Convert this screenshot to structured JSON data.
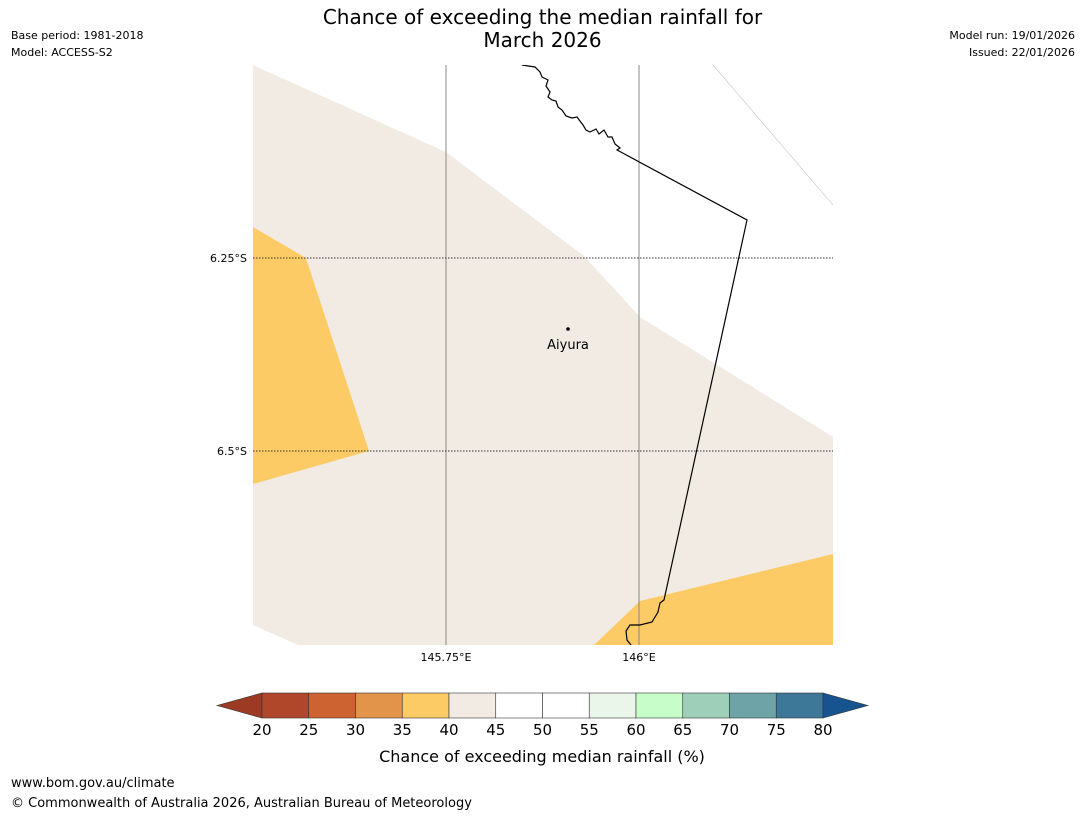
{
  "header": {
    "title_line1": "Chance of exceeding the median rainfall for",
    "title_line2": "March 2026",
    "base_period": "Base period: 1981-2018",
    "model": "Model: ACCESS-S2",
    "model_run": "Model run: 19/01/2026",
    "issued": "Issued: 22/01/2026"
  },
  "map": {
    "lat_labels": [
      "6.25°S",
      "6.5°S"
    ],
    "lon_labels": [
      "145.75°E",
      "146°E"
    ],
    "place": "Aiyura",
    "colors": {
      "band_35_40": "#fdcb66",
      "band_40_45": "#f1ebe4",
      "border": "#000000"
    }
  },
  "colorbar": {
    "ticks": [
      "20",
      "25",
      "30",
      "35",
      "40",
      "45",
      "50",
      "55",
      "60",
      "65",
      "70",
      "75",
      "80"
    ],
    "colors": [
      "#9c3a24",
      "#b0472a",
      "#cd6331",
      "#e2954a",
      "#fdcb66",
      "#f1ebe4",
      "#ffffff",
      "#ffffff",
      "#eaf6e9",
      "#c6fdc9",
      "#9ecfb9",
      "#6ea3a7",
      "#3e7898",
      "#17548f"
    ],
    "label": "Chance of exceeding median rainfall (%)"
  },
  "footer": {
    "url": "www.bom.gov.au/climate",
    "copyright": "© Commonwealth of Australia 2026, Australian Bureau of Meteorology"
  }
}
